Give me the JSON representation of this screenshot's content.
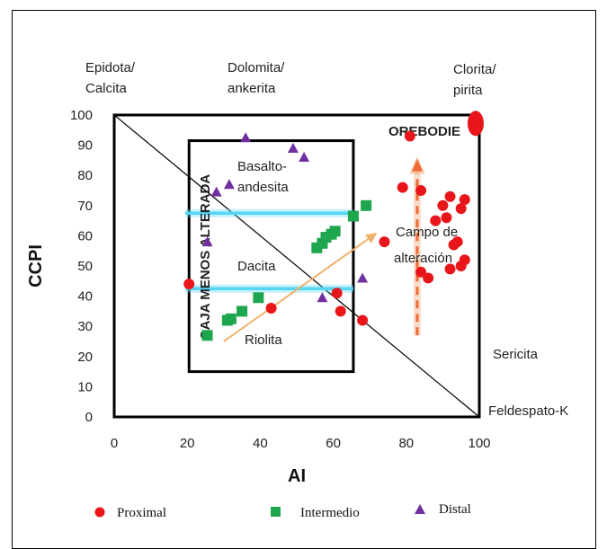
{
  "chart_data": {
    "type": "scatter",
    "xlabel": "AI",
    "ylabel": "CCPI",
    "xlim": [
      0,
      100
    ],
    "ylim": [
      0,
      100
    ],
    "x_ticks": [
      "0",
      "20",
      "40",
      "60",
      "80",
      "100"
    ],
    "y_ticks": [
      "0",
      "10",
      "20",
      "30",
      "40",
      "50",
      "60",
      "70",
      "80",
      "90",
      "100"
    ],
    "grid": false,
    "legend_position": "bottom",
    "corner_labels": {
      "top_left": [
        "Epidota/",
        "Calcita"
      ],
      "top_mid": [
        "Dolomita/",
        "ankerita"
      ],
      "top_right": [
        "Clorita/",
        "pirita"
      ],
      "right_mid": "Sericita",
      "bottom_right": "Feldespato-K"
    },
    "annotations": {
      "orebodie": "OREBODIE",
      "basalto": [
        "Basalto-",
        "andesita"
      ],
      "dacita": "Dacita",
      "riolita": "Riolita",
      "caja": "CAJA MENOS ALTERADA",
      "campo": [
        "Campo de",
        "alteración"
      ]
    },
    "boxes": {
      "outer": {
        "x": [
          0,
          100
        ],
        "y": [
          0,
          100
        ]
      },
      "inner": {
        "x": [
          20.5,
          65.5
        ],
        "y": [
          15,
          91.5
        ]
      }
    },
    "hlines": [
      {
        "y": 67.5,
        "x": [
          19.5,
          65.5
        ],
        "color": "#56d6f5"
      },
      {
        "y": 42.5,
        "x": [
          19.5,
          65.5
        ],
        "color": "#56d6f5"
      }
    ],
    "diagonal": {
      "from": [
        0,
        100
      ],
      "to": [
        100,
        0
      ]
    },
    "arrows": {
      "orange_trend": {
        "from": [
          30,
          25
        ],
        "to": [
          72,
          61
        ],
        "color": "#f0b26a"
      },
      "red_dashed": {
        "from": [
          83,
          27
        ],
        "to": [
          83,
          84
        ],
        "color": "#ef6a35"
      }
    },
    "series": [
      {
        "name": "Proximal",
        "marker": "circle",
        "color": "#e8161b",
        "points": [
          [
            20.5,
            44
          ],
          [
            43,
            36
          ],
          [
            61,
            41
          ],
          [
            62,
            35
          ],
          [
            68,
            32
          ],
          [
            74,
            58
          ],
          [
            79,
            76
          ],
          [
            81,
            93
          ],
          [
            84,
            75
          ],
          [
            84,
            48
          ],
          [
            86,
            46
          ],
          [
            88,
            65
          ],
          [
            90,
            70
          ],
          [
            91,
            66
          ],
          [
            92,
            73
          ],
          [
            93,
            57
          ],
          [
            94,
            58
          ],
          [
            95,
            69
          ],
          [
            96,
            72
          ],
          [
            95,
            50
          ],
          [
            96,
            52
          ],
          [
            92,
            49
          ]
        ]
      },
      {
        "name": "Intermedio",
        "marker": "square",
        "color": "#1ea64f",
        "points": [
          [
            25.5,
            27
          ],
          [
            31,
            32
          ],
          [
            32,
            32.5
          ],
          [
            35,
            35
          ],
          [
            39.5,
            39.5
          ],
          [
            55.5,
            56
          ],
          [
            57,
            57.5
          ],
          [
            58,
            59.5
          ],
          [
            59.5,
            60.5
          ],
          [
            60.5,
            61.5
          ],
          [
            65.5,
            66.5
          ],
          [
            69,
            70
          ]
        ]
      },
      {
        "name": "Distal",
        "marker": "triangle",
        "color": "#7030a0",
        "points": [
          [
            28,
            74.5
          ],
          [
            31.5,
            77
          ],
          [
            36,
            92.5
          ],
          [
            49,
            89
          ],
          [
            52,
            86
          ],
          [
            25.5,
            58
          ],
          [
            57,
            39.5
          ],
          [
            68,
            46
          ]
        ]
      }
    ],
    "top_ellipse": {
      "x": 99,
      "y": 99,
      "color": "#e8161b"
    }
  }
}
